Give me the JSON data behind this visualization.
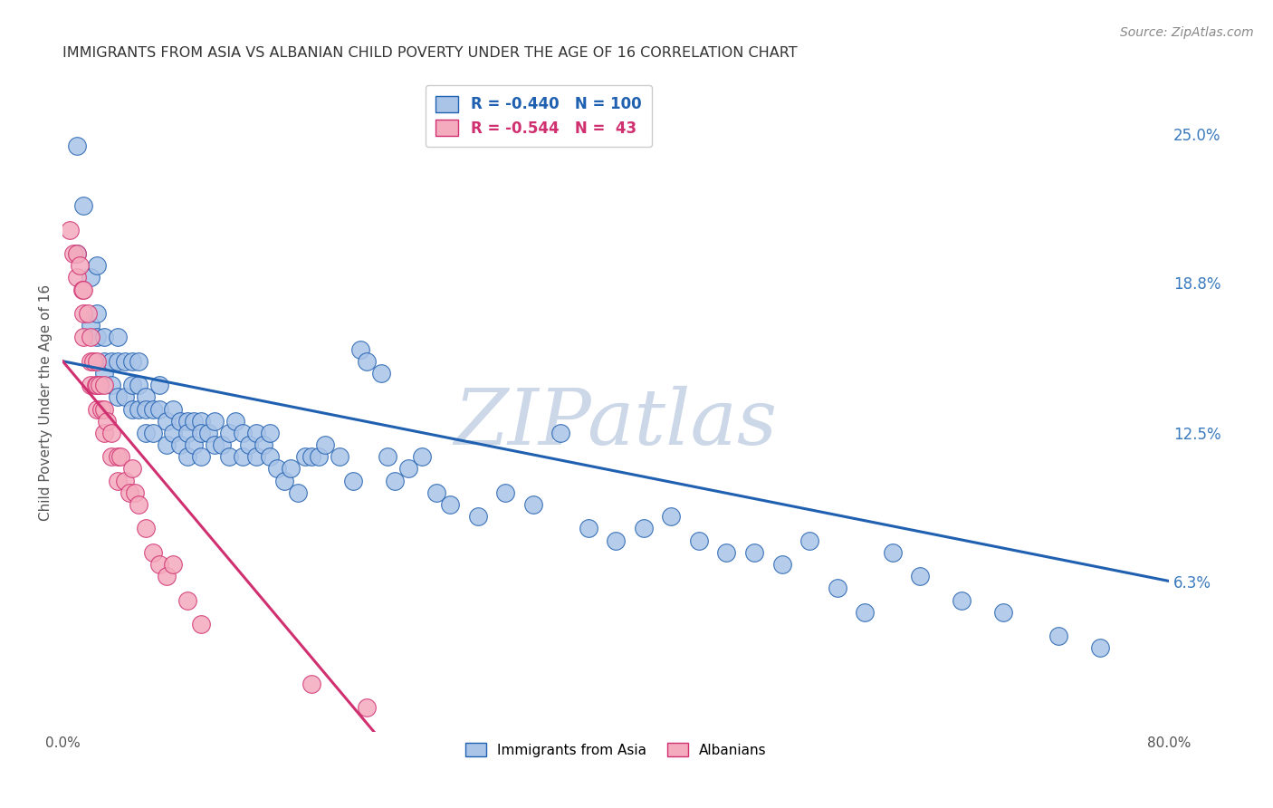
{
  "title": "IMMIGRANTS FROM ASIA VS ALBANIAN CHILD POVERTY UNDER THE AGE OF 16 CORRELATION CHART",
  "source": "Source: ZipAtlas.com",
  "ylabel": "Child Poverty Under the Age of 16",
  "xlim": [
    0.0,
    0.8
  ],
  "ylim": [
    0.0,
    0.275
  ],
  "xticks": [
    0.0,
    0.1,
    0.2,
    0.3,
    0.4,
    0.5,
    0.6,
    0.7,
    0.8
  ],
  "xticklabels": [
    "0.0%",
    "",
    "",
    "",
    "",
    "",
    "",
    "",
    "80.0%"
  ],
  "yticks_right": [
    0.063,
    0.125,
    0.188,
    0.25
  ],
  "yticks_right_labels": [
    "6.3%",
    "12.5%",
    "18.8%",
    "25.0%"
  ],
  "legend_blue_R": "-0.440",
  "legend_blue_N": "100",
  "legend_pink_R": "-0.544",
  "legend_pink_N": " 43",
  "blue_color": "#aac4e8",
  "pink_color": "#f4abbe",
  "line_blue_color": "#2060b0",
  "line_pink_color": "#d03070",
  "watermark": "ZIPatlas",
  "watermark_color": "#ccd8e8",
  "asia_scatter_x": [
    0.01,
    0.01,
    0.015,
    0.02,
    0.02,
    0.025,
    0.025,
    0.025,
    0.03,
    0.03,
    0.03,
    0.035,
    0.035,
    0.04,
    0.04,
    0.04,
    0.045,
    0.045,
    0.05,
    0.05,
    0.05,
    0.055,
    0.055,
    0.055,
    0.06,
    0.06,
    0.06,
    0.065,
    0.065,
    0.07,
    0.07,
    0.075,
    0.075,
    0.08,
    0.08,
    0.085,
    0.085,
    0.09,
    0.09,
    0.09,
    0.095,
    0.095,
    0.1,
    0.1,
    0.1,
    0.105,
    0.11,
    0.11,
    0.115,
    0.12,
    0.12,
    0.125,
    0.13,
    0.13,
    0.135,
    0.14,
    0.14,
    0.145,
    0.15,
    0.15,
    0.155,
    0.16,
    0.165,
    0.17,
    0.175,
    0.18,
    0.185,
    0.19,
    0.2,
    0.21,
    0.215,
    0.22,
    0.23,
    0.235,
    0.24,
    0.25,
    0.26,
    0.27,
    0.28,
    0.3,
    0.32,
    0.34,
    0.36,
    0.38,
    0.4,
    0.42,
    0.44,
    0.46,
    0.48,
    0.5,
    0.52,
    0.54,
    0.56,
    0.58,
    0.6,
    0.62,
    0.65,
    0.68,
    0.72,
    0.75
  ],
  "asia_scatter_y": [
    0.245,
    0.2,
    0.22,
    0.17,
    0.19,
    0.195,
    0.175,
    0.165,
    0.165,
    0.155,
    0.15,
    0.155,
    0.145,
    0.165,
    0.155,
    0.14,
    0.155,
    0.14,
    0.155,
    0.145,
    0.135,
    0.155,
    0.145,
    0.135,
    0.14,
    0.135,
    0.125,
    0.135,
    0.125,
    0.145,
    0.135,
    0.13,
    0.12,
    0.135,
    0.125,
    0.13,
    0.12,
    0.13,
    0.125,
    0.115,
    0.13,
    0.12,
    0.13,
    0.125,
    0.115,
    0.125,
    0.13,
    0.12,
    0.12,
    0.125,
    0.115,
    0.13,
    0.125,
    0.115,
    0.12,
    0.125,
    0.115,
    0.12,
    0.125,
    0.115,
    0.11,
    0.105,
    0.11,
    0.1,
    0.115,
    0.115,
    0.115,
    0.12,
    0.115,
    0.105,
    0.16,
    0.155,
    0.15,
    0.115,
    0.105,
    0.11,
    0.115,
    0.1,
    0.095,
    0.09,
    0.1,
    0.095,
    0.125,
    0.085,
    0.08,
    0.085,
    0.09,
    0.08,
    0.075,
    0.075,
    0.07,
    0.08,
    0.06,
    0.05,
    0.075,
    0.065,
    0.055,
    0.05,
    0.04,
    0.035
  ],
  "albanian_scatter_x": [
    0.005,
    0.008,
    0.01,
    0.01,
    0.012,
    0.014,
    0.015,
    0.015,
    0.015,
    0.018,
    0.02,
    0.02,
    0.02,
    0.022,
    0.024,
    0.025,
    0.025,
    0.025,
    0.027,
    0.028,
    0.03,
    0.03,
    0.03,
    0.032,
    0.035,
    0.035,
    0.04,
    0.04,
    0.042,
    0.045,
    0.048,
    0.05,
    0.052,
    0.055,
    0.06,
    0.065,
    0.07,
    0.075,
    0.08,
    0.09,
    0.1,
    0.18,
    0.22
  ],
  "albanian_scatter_y": [
    0.21,
    0.2,
    0.2,
    0.19,
    0.195,
    0.185,
    0.185,
    0.175,
    0.165,
    0.175,
    0.165,
    0.155,
    0.145,
    0.155,
    0.145,
    0.155,
    0.145,
    0.135,
    0.145,
    0.135,
    0.145,
    0.135,
    0.125,
    0.13,
    0.125,
    0.115,
    0.115,
    0.105,
    0.115,
    0.105,
    0.1,
    0.11,
    0.1,
    0.095,
    0.085,
    0.075,
    0.07,
    0.065,
    0.07,
    0.055,
    0.045,
    0.02,
    0.01
  ],
  "asia_line_x": [
    0.0,
    0.8
  ],
  "asia_line_y": [
    0.155,
    0.063
  ],
  "albanian_line_x": [
    0.0,
    0.225
  ],
  "albanian_line_y": [
    0.155,
    0.0
  ],
  "grid_color": "#cccccc",
  "bg_color": "#ffffff",
  "title_color": "#333333",
  "axis_label_color": "#555555",
  "tick_color_right": "#3a7abf"
}
